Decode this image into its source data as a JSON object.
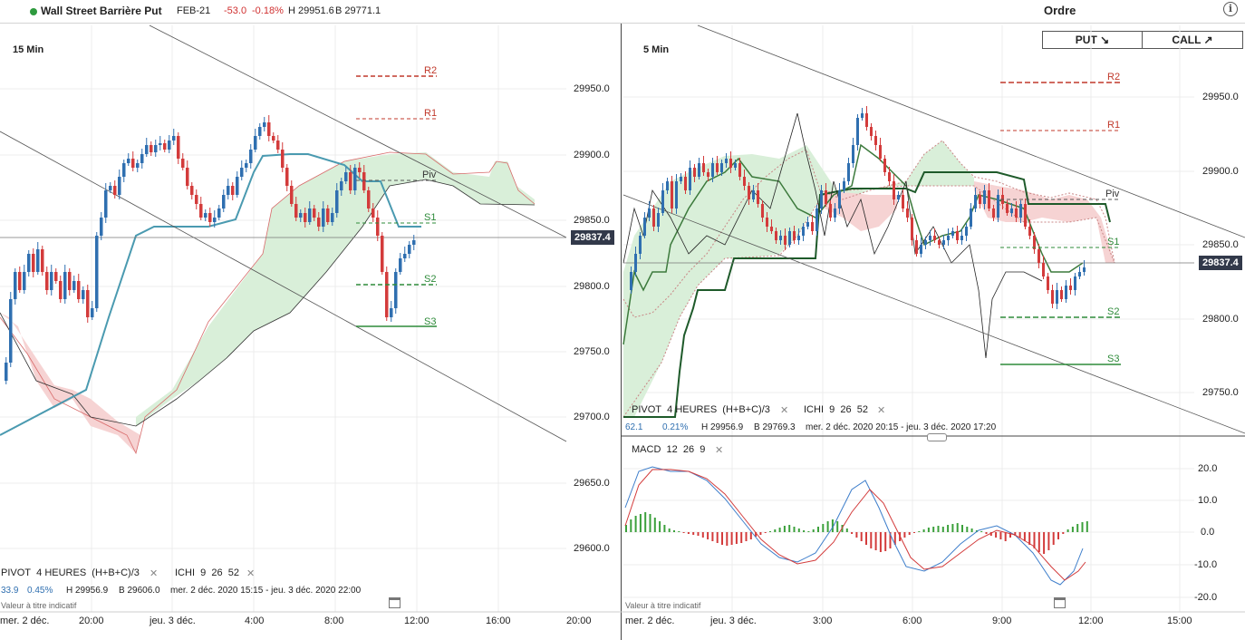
{
  "header": {
    "instrument": "Wall Street Barrière Put",
    "expiry": "FEB-21",
    "change": "-53.0",
    "change_pct": "-0.18%",
    "high": "H 29951.6",
    "bid": "B 29771.1",
    "order_title": "Ordre",
    "info_icon": "info-icon",
    "put_label": "PUT ↘",
    "call_label": "CALL ↗"
  },
  "left_chart": {
    "timeframe": "15 Min",
    "price_ticks": [
      "29950.0",
      "29900.0",
      "29850.0",
      "29800.0",
      "29750.0",
      "29700.0",
      "29650.0",
      "29600.0"
    ],
    "current_price": "29837.4",
    "pivots": {
      "r2": "R2",
      "r1": "R1",
      "piv": "Piv",
      "s1": "S1",
      "s2": "S2",
      "s3": "S3"
    },
    "indicators": {
      "pivot": "PIVOT",
      "pivot_period": "4 HEURES",
      "pivot_formula": "(H+B+C)/3",
      "ichi": "ICHI",
      "ichi_params": [
        "9",
        "26",
        "52"
      ]
    },
    "stats": {
      "value": "33.9",
      "pct": "0.45%",
      "high": "H 29956.9",
      "low": "B 29606.0",
      "range": "mer. 2 déc. 2020 15:15 - jeu. 3 déc. 2020 22:00"
    },
    "disclaimer": "Valeur à titre indicatif",
    "time_ticks": [
      "mer. 2 déc.",
      "20:00",
      "jeu. 3 déc.",
      "4:00",
      "8:00",
      "12:00",
      "16:00",
      "20:00"
    ]
  },
  "right_chart": {
    "timeframe": "5 Min",
    "price_ticks": [
      "29950.0",
      "29900.0",
      "29850.0",
      "29800.0",
      "29750.0"
    ],
    "current_price": "29837.4",
    "pivots": {
      "r2": "R2",
      "r1": "R1",
      "piv": "Piv",
      "s1": "S1",
      "s2": "S2",
      "s3": "S3"
    },
    "indicators": {
      "pivot": "PIVOT",
      "pivot_period": "4 HEURES",
      "pivot_formula": "(H+B+C)/3",
      "ichi": "ICHI",
      "ichi_params": [
        "9",
        "26",
        "52"
      ]
    },
    "stats": {
      "value": "62.1",
      "pct": "0.21%",
      "high": "H 29956.9",
      "low": "B 29769.3",
      "range": "mer. 2 déc. 2020 20:15 - jeu. 3 déc. 2020 17:20"
    },
    "macd": {
      "label": "MACD",
      "params": [
        "12",
        "26",
        "9"
      ],
      "ticks": [
        "20.0",
        "10.0",
        "0.0",
        "-10.0",
        "-20.0"
      ]
    },
    "disclaimer": "Valeur à titre indicatif",
    "time_ticks": [
      "mer. 2 déc.",
      "jeu. 3 déc.",
      "3:00",
      "6:00",
      "9:00",
      "12:00",
      "15:00"
    ]
  },
  "colors": {
    "up": "#2f6fb0",
    "down": "#d33b3b",
    "kijun": "#4a9ab0",
    "senkou_up": "#2e8b3a",
    "pivot_r": "#c0392b",
    "pivot_s": "#2e8b3a"
  }
}
